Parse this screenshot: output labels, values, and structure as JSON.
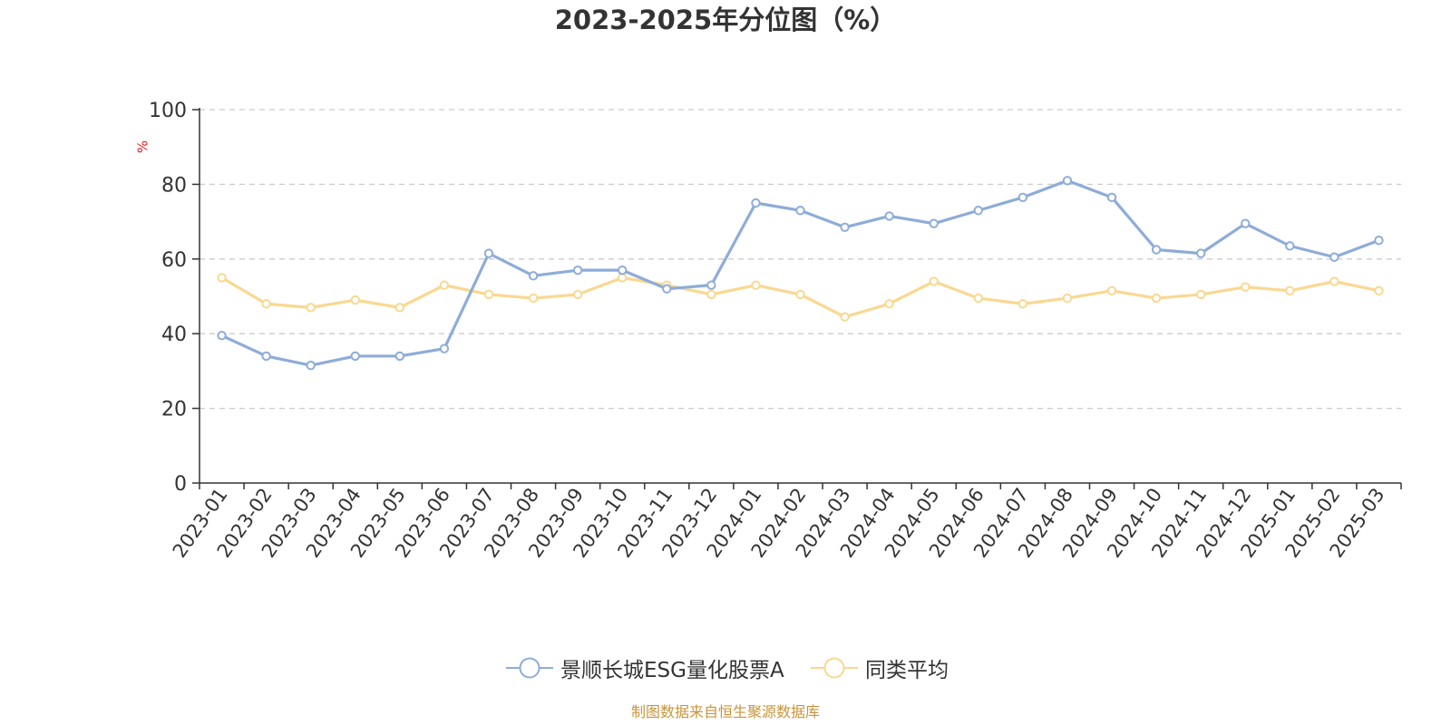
{
  "title": "2023-2025年分位图（%）",
  "source": "制图数据来自恒生聚源数据库",
  "chart_data": {
    "type": "line",
    "title": "2023-2025年分位图（%）",
    "ylabel": "%",
    "xlabel": "",
    "ylim": [
      0,
      100
    ],
    "yticks": [
      0,
      20,
      40,
      60,
      80,
      100
    ],
    "grid": true,
    "legend_position": "bottom",
    "categories": [
      "2023-01",
      "2023-02",
      "2023-03",
      "2023-04",
      "2023-05",
      "2023-06",
      "2023-07",
      "2023-08",
      "2023-09",
      "2023-10",
      "2023-11",
      "2023-12",
      "2024-01",
      "2024-02",
      "2024-03",
      "2024-04",
      "2024-05",
      "2024-06",
      "2024-07",
      "2024-08",
      "2024-09",
      "2024-10",
      "2024-11",
      "2024-12",
      "2025-01",
      "2025-02",
      "2025-03"
    ],
    "series": [
      {
        "name": "景顺长城ESG量化股票A",
        "color": "#8eacd8",
        "values": [
          39.5,
          34.0,
          31.5,
          34.0,
          34.0,
          36.0,
          61.5,
          55.5,
          57.0,
          57.0,
          52.0,
          53.0,
          75.0,
          73.0,
          68.5,
          71.5,
          69.5,
          73.0,
          76.5,
          81.0,
          76.5,
          62.5,
          61.5,
          69.5,
          63.5,
          60.5,
          65.0
        ]
      },
      {
        "name": "同类平均",
        "color": "#f9d891",
        "values": [
          55.0,
          48.0,
          47.0,
          49.0,
          47.0,
          53.0,
          50.5,
          49.5,
          50.5,
          55.0,
          53.0,
          50.5,
          53.0,
          50.5,
          44.5,
          48.0,
          54.0,
          49.5,
          48.0,
          49.5,
          51.5,
          49.5,
          50.5,
          52.5,
          51.5,
          54.0,
          51.5
        ]
      }
    ]
  }
}
